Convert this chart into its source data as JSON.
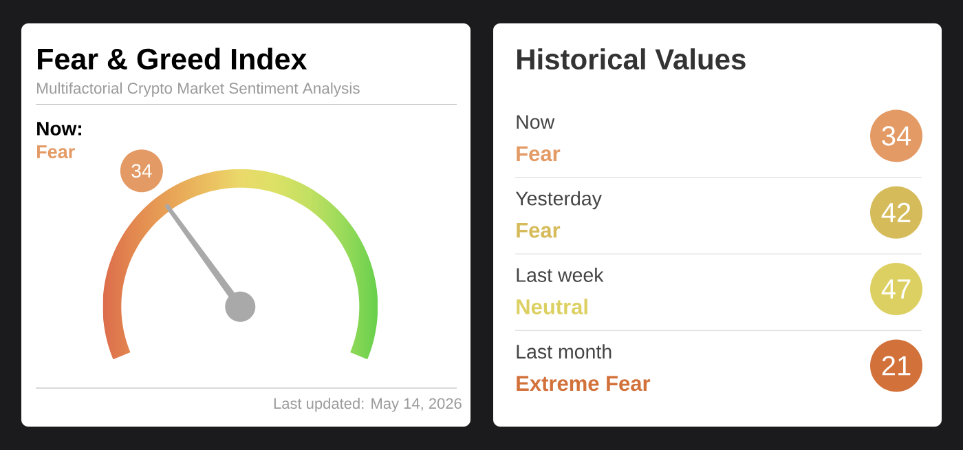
{
  "chart_data": [
    {
      "type": "other",
      "title": "Fear & Greed Index",
      "subtitle": "Multifactorial Crypto Market Sentiment Analysis",
      "values": [
        34
      ],
      "colors": [
        "#e39a64"
      ],
      "data_labels": true,
      "annotations": [
        "Now:",
        "Fear",
        "Last updated: May 14, 2026"
      ]
    },
    {
      "type": "other",
      "title": "Historical Values",
      "values": [
        34,
        42,
        47,
        21
      ],
      "colors": [
        "#e39a64",
        "#d6bb5a",
        "#ddd063",
        "#d2713a"
      ],
      "data_labels": true,
      "annotations": [
        "Now",
        "Fear",
        "Yesterday",
        "Fear",
        "Last week",
        "Neutral",
        "Last month",
        "Extreme Fear"
      ]
    }
  ]
}
